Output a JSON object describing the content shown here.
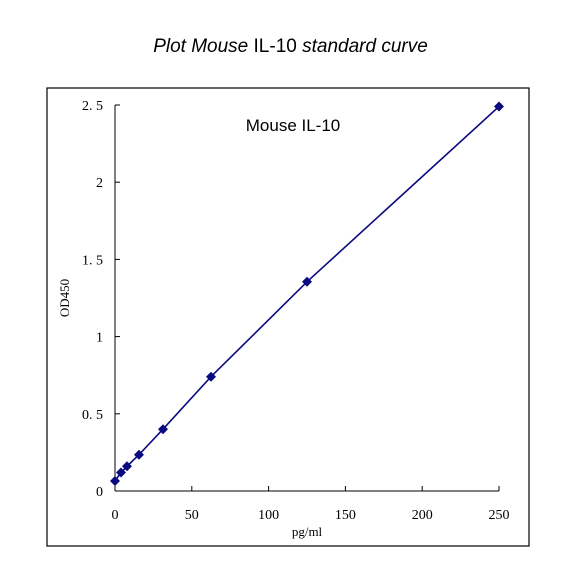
{
  "chart_data": {
    "type": "scatter",
    "title_parts": [
      {
        "text": "Plot Mouse ",
        "italic": true
      },
      {
        "text": "IL-10 ",
        "italic": false
      },
      {
        "text": "standard curve",
        "italic": true
      }
    ],
    "annotation": "Mouse IL-10",
    "xlabel": "pg/ml",
    "ylabel": "OD450",
    "xlim": [
      0,
      250
    ],
    "ylim": [
      0,
      2.5
    ],
    "x_ticks": [
      {
        "value": 0,
        "label": "0"
      },
      {
        "value": 50,
        "label": "50"
      },
      {
        "value": 100,
        "label": "100"
      },
      {
        "value": 150,
        "label": "150"
      },
      {
        "value": 200,
        "label": "200"
      },
      {
        "value": 250,
        "label": "250"
      }
    ],
    "y_ticks": [
      {
        "value": 0,
        "label": "0"
      },
      {
        "value": 0.5,
        "label": "0. 5"
      },
      {
        "value": 1,
        "label": "1"
      },
      {
        "value": 1.5,
        "label": "1. 5"
      },
      {
        "value": 2,
        "label": "2"
      },
      {
        "value": 2.5,
        "label": "2. 5"
      }
    ],
    "grid": false,
    "legend": "none",
    "marker": "diamond",
    "color": "#0a0a80",
    "series": [
      {
        "x": [
          0,
          3.9,
          7.8,
          15.6,
          31.25,
          62.5,
          125,
          250
        ],
        "y": [
          0.065,
          0.12,
          0.16,
          0.235,
          0.4,
          0.74,
          1.355,
          2.49
        ]
      }
    ]
  }
}
